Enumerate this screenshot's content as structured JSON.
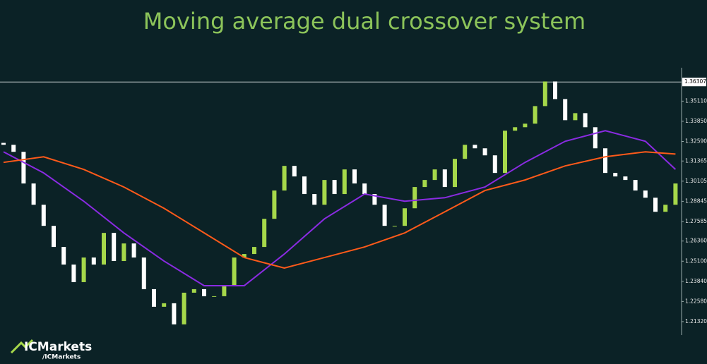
{
  "chart_data": {
    "type": "candlestick",
    "title": "Moving average dual crossover system",
    "up_color": "#a6d84a",
    "down_color": "#ffffff",
    "ylim": [
      1.207,
      1.372
    ],
    "yticks": [
      {
        "value": 1.3511,
        "label": "1.35110"
      },
      {
        "value": 1.3385,
        "label": "1.33850"
      },
      {
        "value": 1.3259,
        "label": "1.32590"
      },
      1.31365,
      1.30105,
      1.28845,
      1.27585,
      {
        "value": 1.2636,
        "label": "1.26360"
      },
      {
        "value": 1.251,
        "label": "1.25100"
      },
      {
        "value": 1.2384,
        "label": "1.23840"
      },
      {
        "value": 1.2258,
        "label": "1.22580"
      },
      {
        "value": 1.2132,
        "label": "1.21320"
      }
    ],
    "current_price": 1.36307,
    "open": [
      1.325,
      1.3238,
      1.3194,
      1.2996,
      1.2863,
      1.2731,
      1.2599,
      1.2489,
      1.2379,
      1.2533,
      1.2489,
      1.2687,
      1.2511,
      1.2621,
      1.2533,
      1.2335,
      1.2225,
      1.2247,
      1.2115,
      1.2313,
      1.2335,
      1.2291,
      1.2291,
      1.2357,
      1.2533,
      1.2555,
      1.2599,
      1.2775,
      1.2952,
      1.3106,
      1.304,
      1.293,
      1.2863,
      1.3018,
      1.293,
      1.3084,
      1.2996,
      1.293,
      1.2863,
      1.2731,
      1.2731,
      1.2841,
      1.2974,
      1.3018,
      1.3084,
      1.2974,
      1.315,
      1.3238,
      1.3216,
      1.3172,
      1.3062,
      1.3326,
      1.3348,
      1.337,
      1.348,
      1.3634,
      1.3524,
      1.3392,
      1.3436,
      1.3348,
      1.3216,
      1.3062,
      1.304,
      1.3018,
      1.2952,
      1.2907,
      1.2819,
      1.2863
    ],
    "close": [
      1.3238,
      1.3194,
      1.2996,
      1.2863,
      1.2731,
      1.2599,
      1.2489,
      1.2379,
      1.2533,
      1.2489,
      1.2687,
      1.2511,
      1.2621,
      1.2533,
      1.2335,
      1.2225,
      1.2247,
      1.2115,
      1.2313,
      1.2335,
      1.2291,
      1.2291,
      1.2357,
      1.2533,
      1.2555,
      1.2599,
      1.2775,
      1.2952,
      1.3106,
      1.304,
      1.293,
      1.2863,
      1.3018,
      1.293,
      1.3084,
      1.2996,
      1.293,
      1.2863,
      1.2731,
      1.2731,
      1.2841,
      1.2974,
      1.3018,
      1.3084,
      1.2974,
      1.315,
      1.3238,
      1.3216,
      1.3172,
      1.3062,
      1.3326,
      1.3348,
      1.337,
      1.348,
      1.3634,
      1.3524,
      1.3392,
      1.3436,
      1.3348,
      1.3216,
      1.3062,
      1.304,
      1.3018,
      1.2952,
      1.2907,
      1.2819,
      1.2863,
      1.2996
    ],
    "series": [
      {
        "color": "#8a2be2",
        "x": [
          0,
          4,
          8,
          12,
          16,
          20,
          24,
          28,
          32,
          36,
          40,
          44,
          48,
          52,
          56,
          60,
          64,
          67
        ],
        "values": [
          1.3194,
          1.3062,
          1.2885,
          1.2687,
          1.2511,
          1.2357,
          1.2357,
          1.2555,
          1.2775,
          1.293,
          1.2885,
          1.2907,
          1.2974,
          1.3128,
          1.326,
          1.3326,
          1.326,
          1.3084
        ]
      },
      {
        "color": "#ff5a1a",
        "x": [
          0,
          4,
          8,
          12,
          16,
          20,
          24,
          28,
          32,
          36,
          40,
          44,
          48,
          52,
          56,
          60,
          64,
          67
        ],
        "values": [
          1.3128,
          1.3163,
          1.3084,
          1.2974,
          1.2841,
          1.2687,
          1.2533,
          1.2467,
          1.2533,
          1.2599,
          1.2687,
          1.2819,
          1.2952,
          1.3018,
          1.3106,
          1.3163,
          1.3194,
          1.318
        ]
      }
    ]
  },
  "logo": {
    "brand": "ICMarkets",
    "handle": "/ICMarkets"
  }
}
